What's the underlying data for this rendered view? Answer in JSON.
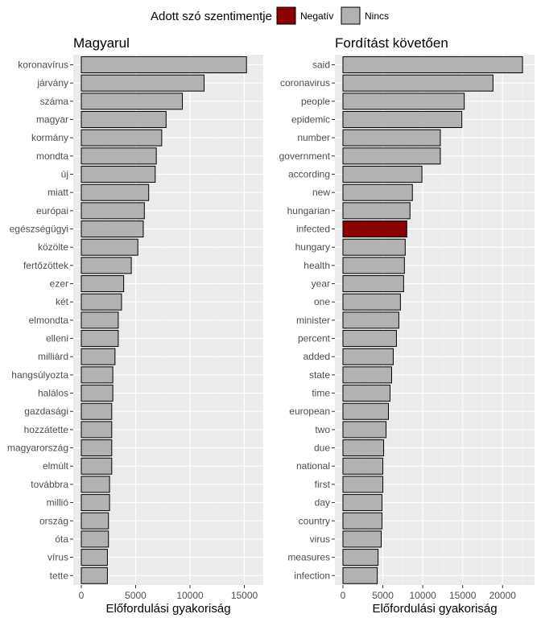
{
  "legend": {
    "title": "Adott szó szentimentje",
    "items": [
      {
        "label": "Negatív",
        "color": "#8B0000"
      },
      {
        "label": "Nincs",
        "color": "#B2B2B2"
      }
    ]
  },
  "chart_data": [
    {
      "type": "bar",
      "orientation": "horizontal",
      "title": "Magyarul",
      "xlabel": "Előfordulási gyakoriság",
      "ylabel": "",
      "xlim": [
        0,
        16000
      ],
      "xticks": [
        0,
        5000,
        10000,
        15000
      ],
      "grid": true,
      "categories": [
        "koronavírus",
        "járvány",
        "száma",
        "magyar",
        "kormány",
        "mondta",
        "új",
        "miatt",
        "európai",
        "egészségügyi",
        "közölte",
        "fertőzöttek",
        "ezer",
        "két",
        "elmondta",
        "elleni",
        "milliárd",
        "hangsúlyozta",
        "halálos",
        "gazdasági",
        "hozzátette",
        "magyarország",
        "elmúlt",
        "továbbra",
        "millió",
        "ország",
        "óta",
        "vírus",
        "tette"
      ],
      "values": [
        15200,
        11300,
        9300,
        7800,
        7400,
        6900,
        6800,
        6200,
        5800,
        5700,
        5200,
        4600,
        3900,
        3700,
        3400,
        3400,
        3100,
        2900,
        2900,
        2800,
        2800,
        2800,
        2800,
        2600,
        2600,
        2500,
        2500,
        2400,
        2400
      ],
      "sentiment": [
        "Nincs",
        "Nincs",
        "Nincs",
        "Nincs",
        "Nincs",
        "Nincs",
        "Nincs",
        "Nincs",
        "Nincs",
        "Nincs",
        "Nincs",
        "Nincs",
        "Nincs",
        "Nincs",
        "Nincs",
        "Nincs",
        "Nincs",
        "Nincs",
        "Nincs",
        "Nincs",
        "Nincs",
        "Nincs",
        "Nincs",
        "Nincs",
        "Nincs",
        "Nincs",
        "Nincs",
        "Nincs",
        "Nincs"
      ]
    },
    {
      "type": "bar",
      "orientation": "horizontal",
      "title": "Fordítást követően",
      "xlabel": "Előfordulási gyakoriság",
      "ylabel": "",
      "xlim": [
        0,
        23000
      ],
      "xticks": [
        0,
        5000,
        10000,
        15000,
        20000
      ],
      "grid": true,
      "categories": [
        "said",
        "coronavirus",
        "people",
        "epidemic",
        "number",
        "government",
        "according",
        "new",
        "hungarian",
        "infected",
        "hungary",
        "health",
        "year",
        "one",
        "minister",
        "percent",
        "added",
        "state",
        "time",
        "european",
        "two",
        "due",
        "national",
        "first",
        "day",
        "country",
        "virus",
        "measures",
        "infection"
      ],
      "values": [
        22500,
        18800,
        15200,
        14900,
        12200,
        12200,
        9900,
        8700,
        8400,
        8000,
        7800,
        7700,
        7600,
        7200,
        7000,
        6700,
        6300,
        6100,
        5900,
        5700,
        5400,
        5100,
        5000,
        5000,
        4900,
        4900,
        4800,
        4400,
        4300
      ],
      "sentiment": [
        "Nincs",
        "Nincs",
        "Nincs",
        "Nincs",
        "Nincs",
        "Nincs",
        "Nincs",
        "Nincs",
        "Nincs",
        "Negatív",
        "Nincs",
        "Nincs",
        "Nincs",
        "Nincs",
        "Nincs",
        "Nincs",
        "Nincs",
        "Nincs",
        "Nincs",
        "Nincs",
        "Nincs",
        "Nincs",
        "Nincs",
        "Nincs",
        "Nincs",
        "Nincs",
        "Nincs",
        "Nincs",
        "Nincs"
      ]
    }
  ]
}
